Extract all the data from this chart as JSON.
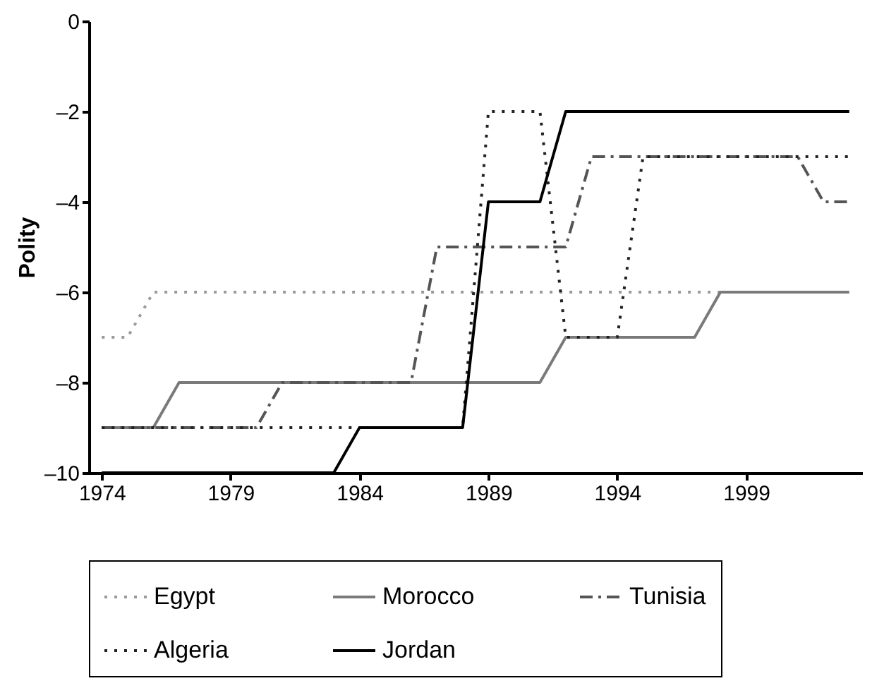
{
  "chart_data": {
    "type": "line",
    "ylabel": "Polity",
    "x": [
      1974,
      1975,
      1976,
      1977,
      1978,
      1979,
      1980,
      1981,
      1982,
      1983,
      1984,
      1985,
      1986,
      1987,
      1988,
      1989,
      1990,
      1991,
      1992,
      1993,
      1994,
      1995,
      1996,
      1997,
      1998,
      1999,
      2000,
      2001,
      2002,
      2003
    ],
    "series": [
      {
        "name": "Egypt",
        "color": "#9a9a9a",
        "line_style": "dotted",
        "values": [
          -7,
          -7,
          -6,
          -6,
          -6,
          -6,
          -6,
          -6,
          -6,
          -6,
          -6,
          -6,
          -6,
          -6,
          -6,
          -6,
          -6,
          -6,
          -6,
          -6,
          -6,
          -6,
          -6,
          -6,
          -6,
          -6,
          -6,
          -6,
          -6,
          -6
        ]
      },
      {
        "name": "Morocco",
        "color": "#7a7a7a",
        "line_style": "solid",
        "values": [
          -9,
          -9,
          -9,
          -8,
          -8,
          -8,
          -8,
          -8,
          -8,
          -8,
          -8,
          -8,
          -8,
          -8,
          -8,
          -8,
          -8,
          -8,
          -7,
          -7,
          -7,
          -7,
          -7,
          -7,
          -6,
          -6,
          -6,
          -6,
          -6,
          -6
        ]
      },
      {
        "name": "Tunisia",
        "color": "#555555",
        "line_style": "dashed",
        "values": [
          -9,
          -9,
          -9,
          -9,
          -9,
          -9,
          -9,
          -8,
          -8,
          -8,
          -8,
          -8,
          -8,
          -5,
          -5,
          -5,
          -5,
          -5,
          -5,
          -3,
          -3,
          -3,
          -3,
          -3,
          -3,
          -3,
          -3,
          -3,
          -4,
          -4
        ]
      },
      {
        "name": "Algeria",
        "color": "#222222",
        "line_style": "dotted",
        "values": [
          -9,
          -9,
          -9,
          -9,
          -9,
          -9,
          -9,
          -9,
          -9,
          -9,
          -9,
          -9,
          -9,
          -9,
          -9,
          -2,
          -2,
          -2,
          -7,
          -7,
          -7,
          -3,
          -3,
          -3,
          -3,
          -3,
          -3,
          -3,
          -3,
          -3
        ]
      },
      {
        "name": "Jordan",
        "color": "#000000",
        "line_style": "solid",
        "values": [
          -10,
          -10,
          -10,
          -10,
          -10,
          -10,
          -10,
          -10,
          -10,
          -10,
          -9,
          -9,
          -9,
          -9,
          -9,
          -4,
          -4,
          -4,
          -2,
          -2,
          -2,
          -2,
          -2,
          -2,
          -2,
          -2,
          -2,
          -2,
          -2,
          -2
        ]
      }
    ],
    "xlim": [
      1973.5,
      2003.5
    ],
    "xticks": [
      1974,
      1979,
      1984,
      1989,
      1994,
      1999
    ],
    "ylim": [
      -10,
      0
    ],
    "yticks": [
      {
        "value": 0,
        "label": "0"
      },
      {
        "value": -2,
        "label": "–2"
      },
      {
        "value": -4,
        "label": "–4"
      },
      {
        "value": -6,
        "label": "–6"
      },
      {
        "value": -8,
        "label": "–8"
      },
      {
        "value": -10,
        "label": "–10"
      }
    ],
    "grid": false,
    "legend": "bottom",
    "marker": "none"
  }
}
